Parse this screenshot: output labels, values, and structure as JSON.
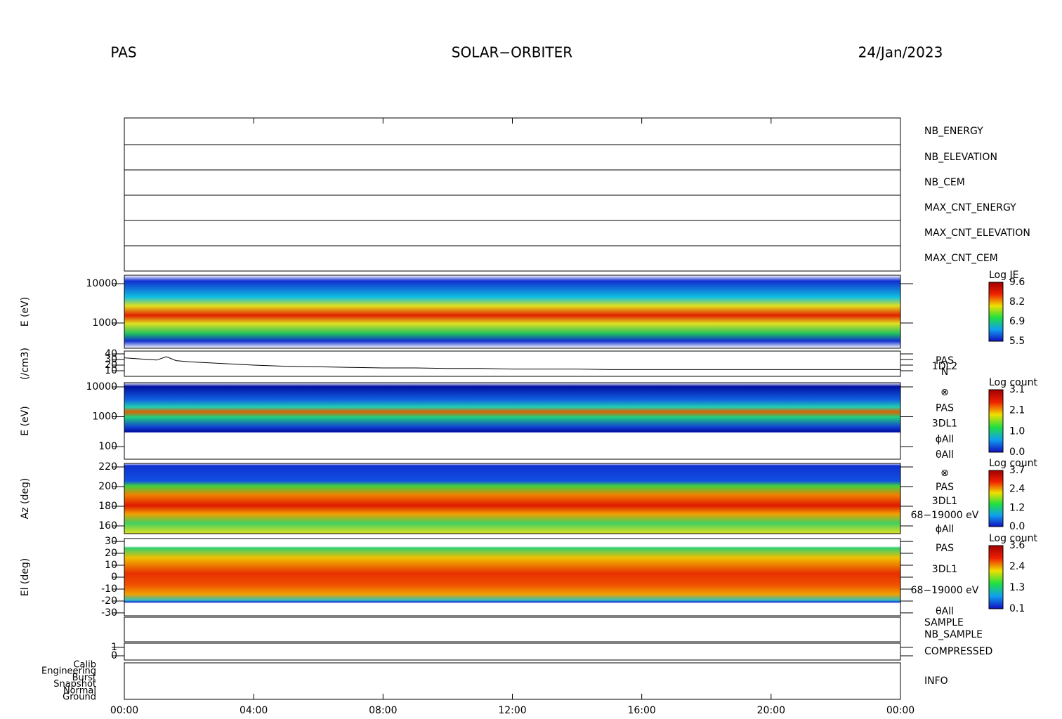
{
  "header": {
    "instrument": "PAS",
    "mission": "SOLAR−ORBITER",
    "date": "24/Jan/2023"
  },
  "time_axis": {
    "xlim": [
      0,
      24
    ],
    "xticks": [
      {
        "value": 0,
        "label": "00:00"
      },
      {
        "value": 4,
        "label": "04:00"
      },
      {
        "value": 8,
        "label": "08:00"
      },
      {
        "value": 12,
        "label": "12:00"
      },
      {
        "value": 16,
        "label": "16:00"
      },
      {
        "value": 20,
        "label": "20:00"
      },
      {
        "value": 24,
        "label": "00:00"
      }
    ]
  },
  "panels": [
    {
      "labels": [
        {
          "text": "NB_ENERGY",
          "color": "#2a2aa8"
        }
      ]
    },
    {
      "labels": [
        {
          "text": "NB_ELEVATION",
          "color": "#2a2aa8"
        }
      ]
    },
    {
      "labels": [
        {
          "text": "NB_CEM",
          "color": "#2a2aa8"
        }
      ]
    },
    {
      "labels": [
        {
          "text": "MAX_CNT_ENERGY",
          "color": "#2a2aa8"
        }
      ]
    },
    {
      "labels": [
        {
          "text": "MAX_CNT_ELEVATION",
          "color": "#2a2aa8"
        }
      ]
    },
    {
      "labels": [
        {
          "text": "MAX_CNT_CEM",
          "color": "#2a2aa8"
        }
      ]
    },
    {
      "ylabel": "E (eV)",
      "log": true,
      "ylim": [
        227,
        16380
      ],
      "yticks": [
        1000,
        10000
      ],
      "colorbar": {
        "title": "Log JE",
        "ticks": [
          9.6,
          8.2,
          6.9,
          5.5
        ]
      },
      "labels": []
    },
    {
      "ylabel": "(/cm3)",
      "ylim": [
        0,
        45
      ],
      "yticks": [
        10,
        20,
        30,
        40
      ],
      "labels": [
        {
          "text": "PAS",
          "color": "#000"
        },
        {
          "text": "1DL2",
          "color": "#000"
        },
        {
          "text": "N",
          "color": "#000"
        }
      ],
      "series": {
        "x": [
          0,
          0.5,
          1,
          1.3,
          1.6,
          2,
          3,
          4,
          5,
          6,
          7,
          8,
          9,
          10,
          11,
          12,
          13,
          14,
          15,
          16,
          17,
          18,
          19,
          20,
          21,
          22,
          23,
          24
        ],
        "values": [
          33,
          31,
          29,
          35,
          28,
          26,
          23,
          20,
          18,
          17,
          16,
          15,
          15,
          14,
          14,
          13,
          13,
          13,
          12,
          12,
          12,
          12,
          12,
          12,
          12,
          12,
          12,
          12
        ]
      }
    },
    {
      "ylabel": "E (eV)",
      "log": true,
      "ylim": [
        37.7,
        13840
      ],
      "yticks": [
        100,
        1000,
        10000
      ],
      "colorbar": {
        "title": "Log count",
        "ticks": [
          3.1,
          2.1,
          {
            "value": 1,
            "label": "1.0"
          },
          {
            "value": 0,
            "label": "0.0"
          }
        ]
      },
      "labels": [
        {
          "text": "⊗",
          "color": "#000"
        },
        {
          "text": "PAS",
          "color": "#000"
        },
        {
          "text": "3DL1",
          "color": "#000"
        },
        {
          "text": "ϕAll",
          "color": "#000"
        },
        {
          "text": "θAll",
          "color": "#000"
        }
      ]
    },
    {
      "ylabel": "Az (deg)",
      "ylim": [
        152.1,
        223.6
      ],
      "yticks": [
        160,
        180,
        200,
        220
      ],
      "colorbar": {
        "title": "Log count",
        "ticks": [
          3.7,
          2.4,
          1.2,
          {
            "value": 0,
            "label": "0.0"
          }
        ]
      },
      "labels": [
        {
          "text": "⊗",
          "color": "#000"
        },
        {
          "text": "PAS",
          "color": "#000"
        },
        {
          "text": "3DL1",
          "color": "#000"
        },
        {
          "text": "68−19000 eV",
          "color": "#000"
        },
        {
          "text": "ϕAll",
          "color": "#000"
        }
      ]
    },
    {
      "ylabel": "El (deg)",
      "ylim": [
        -32.4,
        32.4
      ],
      "yticks": [
        -30,
        -20,
        -10,
        0,
        10,
        20,
        30
      ],
      "colorbar": {
        "title": "Log count",
        "ticks": [
          3.6,
          2.4,
          1.3,
          0.1
        ]
      },
      "labels": [
        {
          "text": "PAS",
          "color": "#000"
        },
        {
          "text": "3DL1",
          "color": "#000"
        },
        {
          "text": "68−19000 eV",
          "color": "#000"
        },
        {
          "text": "θAll",
          "color": "#000"
        }
      ]
    },
    {
      "labels": [
        {
          "text": "SAMPLE",
          "color": "#2a2aa8"
        },
        {
          "text": "NB_SAMPLE",
          "color": "#e02020"
        }
      ]
    },
    {
      "ylim": [
        -0.5,
        1.5
      ],
      "yticks": [
        0,
        1
      ],
      "labels": [
        {
          "text": "COMPRESSED",
          "color": "#2a2aa8"
        }
      ]
    },
    {
      "categories": [
        "Calib",
        "Engineering",
        "Burst",
        "Snapshot",
        "Normal",
        "Ground"
      ],
      "labels": [
        {
          "text": "INFO",
          "color": "#2a2aa8"
        }
      ]
    }
  ]
}
